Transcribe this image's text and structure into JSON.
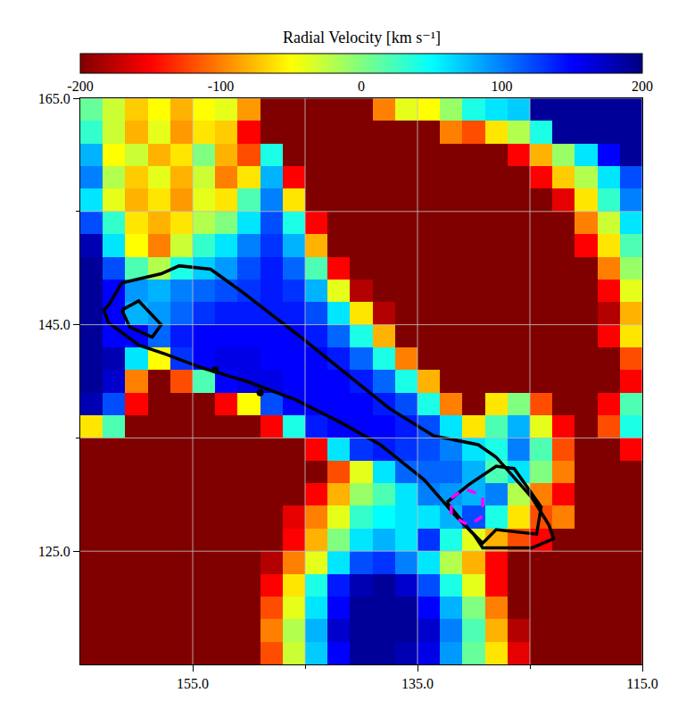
{
  "chart_data": {
    "type": "heatmap",
    "colorbar_title": "Radial Velocity [km s⁻¹]",
    "zlim": [
      -200,
      200
    ],
    "zticks": [
      -200,
      -100,
      0,
      100,
      200
    ],
    "xlim": [
      165,
      115
    ],
    "ylim": [
      115,
      165
    ],
    "xticks": [
      {
        "value": 155,
        "label": "155.0"
      },
      {
        "value": 135,
        "label": "135.0"
      },
      {
        "value": 115,
        "label": "115.0"
      }
    ],
    "yticks": [
      {
        "value": 125,
        "label": "125.0"
      },
      {
        "value": 145,
        "label": "145.0"
      },
      {
        "value": 165,
        "label": "165.0"
      }
    ],
    "xminor": [
      145,
      125
    ],
    "yminor": [
      135,
      155
    ],
    "grid": true,
    "x": [
      164,
      162,
      160,
      158,
      156,
      154,
      152,
      150,
      148,
      146,
      144,
      142,
      140,
      138,
      136,
      134,
      132,
      130,
      128,
      126,
      124,
      122,
      120,
      118,
      116
    ],
    "y": [
      164,
      162,
      160,
      158,
      156,
      154,
      152,
      150,
      148,
      146,
      144,
      142,
      140,
      138,
      136,
      134,
      132,
      130,
      128,
      126,
      124,
      122,
      120,
      118,
      116
    ],
    "z": [
      [
        10,
        -30,
        -70,
        -50,
        -80,
        -50,
        -40,
        -90,
        -200,
        -200,
        -200,
        -200,
        -200,
        -100,
        -40,
        -50,
        -10,
        40,
        60,
        70,
        190,
        190,
        190,
        190,
        190
      ],
      [
        30,
        -30,
        -80,
        -40,
        -90,
        -60,
        -70,
        -150,
        -200,
        -200,
        -200,
        -200,
        -200,
        -200,
        -200,
        -200,
        -100,
        -120,
        -60,
        -20,
        40,
        190,
        190,
        190,
        190
      ],
      [
        80,
        -50,
        -30,
        -80,
        -60,
        0,
        -80,
        -120,
        40,
        -200,
        -200,
        -200,
        -200,
        -200,
        -200,
        -200,
        -200,
        -200,
        -200,
        -150,
        -80,
        -10,
        60,
        150,
        190
      ],
      [
        100,
        -20,
        -70,
        -40,
        -80,
        -30,
        -100,
        -60,
        80,
        -150,
        -200,
        -200,
        -200,
        -200,
        -200,
        -200,
        -200,
        -200,
        -200,
        -200,
        -150,
        -70,
        -20,
        60,
        120
      ],
      [
        60,
        -40,
        -80,
        -60,
        -90,
        -40,
        -60,
        20,
        100,
        -60,
        -200,
        -200,
        -200,
        -200,
        -200,
        -200,
        -200,
        -200,
        -200,
        -200,
        -200,
        -160,
        -60,
        30,
        100
      ],
      [
        120,
        30,
        -60,
        -80,
        -60,
        -20,
        0,
        60,
        120,
        40,
        -150,
        -200,
        -200,
        -200,
        -200,
        -200,
        -200,
        -200,
        -200,
        -200,
        -200,
        -200,
        -100,
        -30,
        60
      ],
      [
        180,
        60,
        -50,
        -100,
        -30,
        30,
        60,
        100,
        130,
        80,
        -80,
        -200,
        -200,
        -200,
        -200,
        -200,
        -200,
        -200,
        -200,
        -200,
        -200,
        -200,
        -150,
        -60,
        20
      ],
      [
        190,
        120,
        20,
        -20,
        40,
        70,
        90,
        120,
        140,
        110,
        20,
        -150,
        -200,
        -200,
        -200,
        -200,
        -200,
        -200,
        -200,
        -200,
        -200,
        -200,
        -200,
        -100,
        -10
      ],
      [
        190,
        150,
        90,
        80,
        100,
        110,
        120,
        130,
        140,
        130,
        80,
        -40,
        -180,
        -200,
        -200,
        -200,
        -200,
        -200,
        -200,
        -200,
        -200,
        -200,
        -200,
        -150,
        -40
      ],
      [
        190,
        150,
        80,
        90,
        110,
        130,
        140,
        140,
        140,
        140,
        120,
        60,
        -60,
        -180,
        -200,
        -200,
        -200,
        -200,
        -200,
        -200,
        -200,
        -200,
        -200,
        -180,
        -80
      ],
      [
        190,
        150,
        150,
        110,
        140,
        150,
        150,
        150,
        150,
        150,
        140,
        110,
        40,
        -80,
        -200,
        -200,
        -200,
        -200,
        -200,
        -200,
        -200,
        -200,
        -200,
        -150,
        -60
      ],
      [
        190,
        180,
        60,
        -50,
        130,
        150,
        160,
        160,
        150,
        150,
        150,
        140,
        110,
        40,
        -100,
        -200,
        -200,
        -200,
        -200,
        -200,
        -200,
        -200,
        -200,
        -200,
        -120
      ],
      [
        190,
        170,
        -100,
        -200,
        -120,
        20,
        150,
        160,
        160,
        150,
        150,
        150,
        140,
        110,
        40,
        -80,
        -200,
        -200,
        -200,
        -200,
        -200,
        -200,
        -200,
        -200,
        -150
      ],
      [
        180,
        120,
        -150,
        -200,
        -200,
        -200,
        -150,
        -50,
        120,
        150,
        150,
        150,
        150,
        140,
        120,
        40,
        -100,
        -200,
        -60,
        0,
        -120,
        -200,
        -200,
        -150,
        20
      ],
      [
        -60,
        20,
        -200,
        -200,
        -200,
        -200,
        -200,
        -200,
        -150,
        40,
        140,
        150,
        150,
        150,
        140,
        120,
        60,
        -60,
        20,
        80,
        -40,
        -150,
        -200,
        -120,
        40
      ],
      [
        -200,
        -200,
        -200,
        -200,
        -200,
        -200,
        -200,
        -200,
        -200,
        -200,
        -150,
        60,
        130,
        140,
        130,
        120,
        100,
        60,
        40,
        100,
        20,
        -120,
        -200,
        -200,
        -150
      ],
      [
        -200,
        -200,
        -200,
        -200,
        -200,
        -200,
        -200,
        -200,
        -200,
        -200,
        -200,
        -120,
        -40,
        60,
        110,
        110,
        110,
        80,
        20,
        60,
        0,
        -100,
        -200,
        -200,
        -200
      ],
      [
        -200,
        -200,
        -200,
        -200,
        -200,
        -200,
        -200,
        -200,
        -200,
        -200,
        -150,
        -80,
        -10,
        20,
        60,
        100,
        90,
        80,
        100,
        -20,
        -100,
        -150,
        -200,
        -200,
        -200
      ],
      [
        -200,
        -200,
        -200,
        -200,
        -200,
        -200,
        -200,
        -200,
        -200,
        -160,
        -100,
        -40,
        30,
        50,
        60,
        60,
        80,
        120,
        40,
        -60,
        -120,
        -100,
        -200,
        -200,
        -200
      ],
      [
        -200,
        -200,
        -200,
        -200,
        -200,
        -200,
        -200,
        -200,
        -200,
        -150,
        -80,
        0,
        60,
        80,
        60,
        130,
        40,
        -40,
        -80,
        -120,
        -150,
        -200,
        -200,
        -200,
        -200
      ],
      [
        -200,
        -200,
        -200,
        -200,
        -200,
        -200,
        -200,
        -200,
        -180,
        -100,
        -40,
        60,
        120,
        130,
        100,
        60,
        -20,
        -80,
        -150,
        -200,
        -200,
        -200,
        -200,
        -200,
        -200
      ],
      [
        -200,
        -200,
        -200,
        -200,
        -200,
        -200,
        -200,
        -200,
        -150,
        -60,
        40,
        140,
        180,
        190,
        170,
        120,
        40,
        -40,
        -150,
        -200,
        -200,
        -200,
        -200,
        -200,
        -200
      ],
      [
        -200,
        -200,
        -200,
        -200,
        -200,
        -200,
        -200,
        -200,
        -120,
        -40,
        60,
        150,
        190,
        190,
        190,
        150,
        80,
        0,
        -100,
        -200,
        -200,
        -200,
        -200,
        -200,
        -200
      ],
      [
        -200,
        -200,
        -200,
        -200,
        -200,
        -200,
        -200,
        -200,
        -100,
        -20,
        80,
        170,
        190,
        190,
        190,
        170,
        100,
        20,
        -80,
        -180,
        -200,
        -200,
        -200,
        -200,
        -200
      ],
      [
        -200,
        -200,
        -200,
        -200,
        -200,
        -200,
        -200,
        -200,
        -120,
        -30,
        70,
        150,
        190,
        190,
        180,
        160,
        90,
        10,
        -60,
        -160,
        -200,
        -200,
        -200,
        -200,
        -200
      ]
    ],
    "contours": [
      {
        "color": "#000000",
        "line_style": "solid",
        "x": [
          162.5,
          161.3,
          157.8,
          156.2,
          153.4,
          150.6,
          145.5,
          141.5,
          137.5,
          133.6,
          129.6,
          128.0,
          124.8,
          123.3,
          122.9,
          124.8,
          129.2,
          130.0,
          131.6,
          134.4,
          138.3,
          141.9,
          145.9,
          150.2,
          154.2,
          157.4,
          159.8,
          162.5,
          162.9,
          162.5
        ],
        "y": [
          146.7,
          148.7,
          149.5,
          150.2,
          149.9,
          147.9,
          144.0,
          140.8,
          137.6,
          135.2,
          134.4,
          133.3,
          129.7,
          127.3,
          126.1,
          125.3,
          125.3,
          126.5,
          128.1,
          131.3,
          134.4,
          136.4,
          138.4,
          140.0,
          141.2,
          142.4,
          143.2,
          145.2,
          146.3,
          146.7
        ]
      },
      {
        "color": "#000000",
        "line_style": "solid",
        "x": [
          161.3,
          159.8,
          157.8,
          158.6,
          160.6,
          161.3
        ],
        "y": [
          146.3,
          147.1,
          145.0,
          143.9,
          144.8,
          146.3
        ]
      },
      {
        "color": "#000000",
        "line_style": "solid",
        "x": [
          132.4,
          130.4,
          128.0,
          126.4,
          124.0,
          124.4,
          128.0,
          129.2,
          130.4,
          132.4
        ],
        "y": [
          129.3,
          130.9,
          132.5,
          132.3,
          128.9,
          126.5,
          126.9,
          125.7,
          126.9,
          129.3
        ]
      },
      {
        "color": "#ff00ff",
        "line_style": "dashed",
        "x": [
          132.0,
          130.8,
          129.2,
          129.2,
          130.4,
          132.0,
          132.0
        ],
        "y": [
          129.7,
          130.5,
          129.9,
          128.1,
          127.3,
          128.1,
          129.7
        ]
      }
    ],
    "points": {
      "color": "#000000",
      "marker": "circle",
      "x": [
        153.0,
        149.0
      ],
      "y": [
        141.0,
        139.0
      ]
    }
  }
}
